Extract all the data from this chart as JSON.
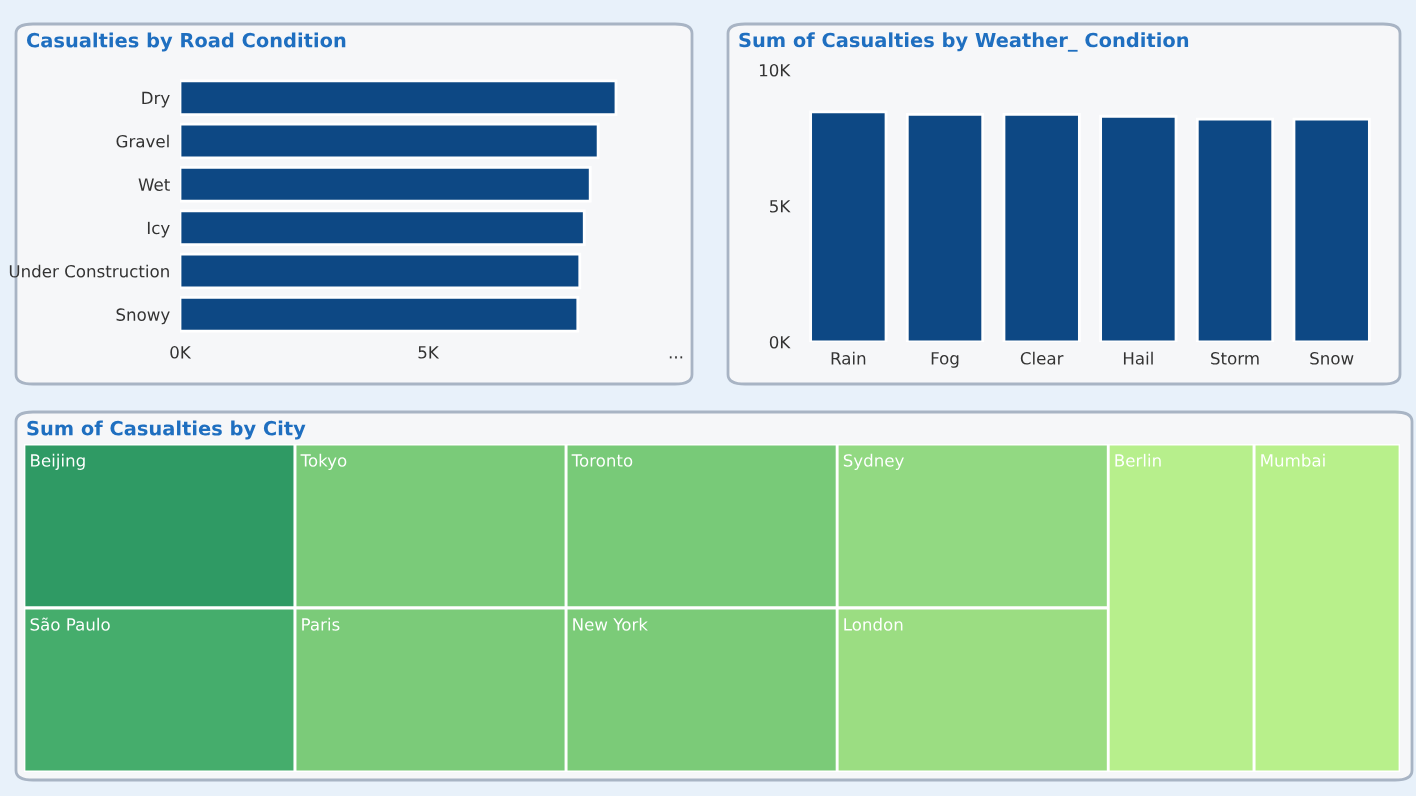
{
  "chart_data": [
    {
      "type": "bar",
      "orientation": "horizontal",
      "title": "Casualties by Road Condition",
      "categories": [
        "Dry",
        "Gravel",
        "Wet",
        "Icy",
        "Under Construction",
        "Snowy"
      ],
      "values": [
        8790,
        8430,
        8270,
        8150,
        8060,
        8020
      ],
      "color": "#0d4884",
      "xlim": [
        0,
        10000
      ],
      "xticks": [
        {
          "value": 0,
          "label": "0K"
        },
        {
          "value": 5000,
          "label": "5K"
        },
        {
          "value": 10000,
          "label": "..."
        }
      ],
      "grid": false,
      "legend": false
    },
    {
      "type": "bar",
      "title": "Sum of Casualties by Weather_ Condition",
      "categories": [
        "Rain",
        "Fog",
        "Clear",
        "Hail",
        "Storm",
        "Snow"
      ],
      "values": [
        8460,
        8370,
        8370,
        8300,
        8190,
        8190
      ],
      "color": "#0d4884",
      "ylim": [
        0,
        10000
      ],
      "yticks": [
        {
          "value": 0,
          "label": "0K"
        },
        {
          "value": 5000,
          "label": "5K"
        },
        {
          "value": 10000,
          "label": "10K"
        }
      ],
      "grid": false,
      "legend": false
    },
    {
      "type": "other",
      "title": "Sum of Casualties by City",
      "categories": [
        "Beijing",
        "São Paulo",
        "Tokyo",
        "Paris",
        "Toronto",
        "New York",
        "Sydney",
        "London",
        "Berlin",
        "Mumbai"
      ],
      "colors": [
        "#2f9a64",
        "#45ad6c",
        "#7acb79",
        "#7bcb79",
        "#78ca78",
        "#7bcb78",
        "#92d982",
        "#9bdd82",
        "#b7ef8c",
        "#b8f08b"
      ]
    }
  ]
}
